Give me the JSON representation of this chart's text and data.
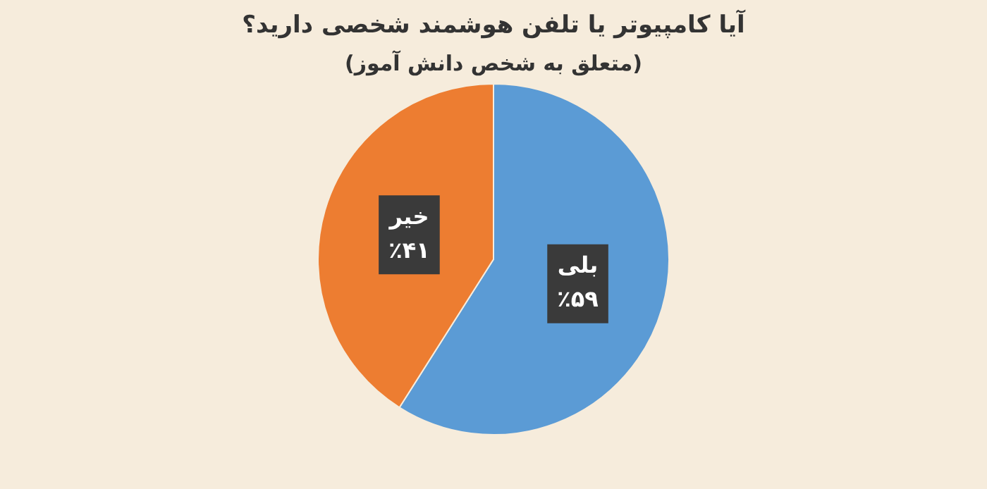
{
  "chart_data": {
    "type": "pie",
    "title": "آیا کامپیوتر یا تلفن هوشمند شخصی دارید؟",
    "subtitle": "(متعلق به شخص دانش آموز)",
    "categories": [
      "بلی",
      "خیر"
    ],
    "values": [
      59,
      41
    ],
    "colors": [
      "#5b9bd5",
      "#ed7d31"
    ],
    "value_labels": [
      "٪۵۹",
      "٪۴۱"
    ],
    "legend": false
  }
}
